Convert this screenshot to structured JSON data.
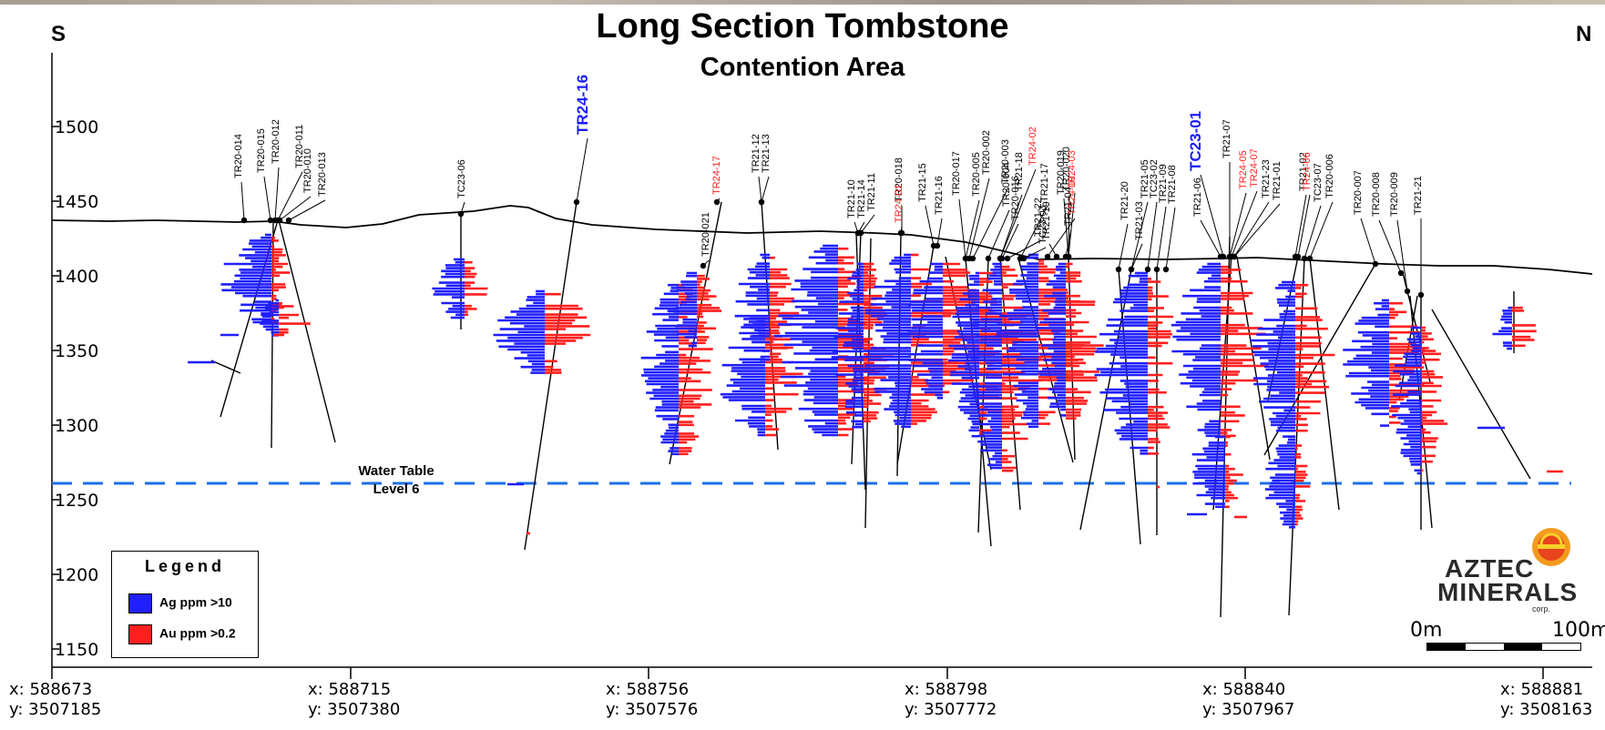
{
  "title": "Long Section Tombstone",
  "subtitle": "Contention Area",
  "direction_left": "S",
  "direction_right": "N",
  "y_axis_ticks": [
    "1500",
    "1450",
    "1400",
    "1350",
    "1300",
    "1250",
    "1200",
    "1150"
  ],
  "x_coordinates": [
    {
      "x": "x: 588673",
      "y": "y: 3507185"
    },
    {
      "x": "x: 588715",
      "y": "y: 3507380"
    },
    {
      "x": "x: 588756",
      "y": "y: 3507576"
    },
    {
      "x": "x: 588798",
      "y": "y: 3507772"
    },
    {
      "x": "x: 588840",
      "y": "y: 3507967"
    },
    {
      "x": "x: 588881",
      "y": "y: 3508163"
    }
  ],
  "water_table": {
    "line1": "Water Table",
    "line2": "Level 6"
  },
  "legend": {
    "title": "Legend",
    "items": [
      {
        "label": "Ag ppm >10",
        "color": "#1f1fff"
      },
      {
        "label": "Au ppm >0.2",
        "color": "#ff1f1f"
      }
    ]
  },
  "logo": {
    "line1": "AZTEC",
    "line2": "MINERALS",
    "line3": "corp."
  },
  "scale_bar": {
    "start": "0m",
    "end": "100m"
  },
  "colors": {
    "ag": "#1f1fff",
    "au": "#ff1f1f",
    "highlight_hole": "#1a1aff",
    "new_hole": "#ff1f1f",
    "water_table": "#1f6fe8"
  },
  "drill_holes": [
    {
      "name": "TR20-014",
      "color": "black"
    },
    {
      "name": "TR20-015",
      "color": "black"
    },
    {
      "name": "TR20-012",
      "color": "black"
    },
    {
      "name": "TR20-011",
      "color": "black"
    },
    {
      "name": "TR20-010",
      "color": "black"
    },
    {
      "name": "TR20-013",
      "color": "black"
    },
    {
      "name": "TC23-06",
      "color": "black"
    },
    {
      "name": "TR24-16",
      "color": "blue"
    },
    {
      "name": "TR20-021",
      "color": "black"
    },
    {
      "name": "TR24-17",
      "color": "red"
    },
    {
      "name": "TR21-12",
      "color": "black"
    },
    {
      "name": "TR21-13",
      "color": "black"
    },
    {
      "name": "TR21-10",
      "color": "black"
    },
    {
      "name": "TR21-14",
      "color": "black"
    },
    {
      "name": "TR21-11",
      "color": "black"
    },
    {
      "name": "TR20-018",
      "color": "black"
    },
    {
      "name": "TR24-01",
      "color": "red"
    },
    {
      "name": "TR21-15",
      "color": "black"
    },
    {
      "name": "TR21-16",
      "color": "black"
    },
    {
      "name": "TR20-017",
      "color": "black"
    },
    {
      "name": "TR20-005",
      "color": "black"
    },
    {
      "name": "TR20-002",
      "color": "black"
    },
    {
      "name": "TR20-003",
      "color": "black"
    },
    {
      "name": "TR20-004",
      "color": "black"
    },
    {
      "name": "TR20-016",
      "color": "black"
    },
    {
      "name": "TR21-18",
      "color": "black"
    },
    {
      "name": "TR24-02",
      "color": "red"
    },
    {
      "name": "TR21-22",
      "color": "black"
    },
    {
      "name": "TR21-17",
      "color": "black"
    },
    {
      "name": "TC23-03",
      "color": "black"
    },
    {
      "name": "TR20-019",
      "color": "black"
    },
    {
      "name": "TR20-020",
      "color": "black"
    },
    {
      "name": "TR24-03",
      "color": "red"
    },
    {
      "name": "TR24-10",
      "color": "red"
    },
    {
      "name": "TR21-19",
      "color": "black"
    },
    {
      "name": "TR21-04",
      "color": "black"
    },
    {
      "name": "TR21-20",
      "color": "black"
    },
    {
      "name": "TR21-03",
      "color": "black"
    },
    {
      "name": "TR21-05",
      "color": "black"
    },
    {
      "name": "TC23-02",
      "color": "black"
    },
    {
      "name": "TR21-09",
      "color": "black"
    },
    {
      "name": "TR21-08",
      "color": "black"
    },
    {
      "name": "TR21-06",
      "color": "black"
    },
    {
      "name": "TC23-01",
      "color": "blue"
    },
    {
      "name": "TR21-07",
      "color": "black"
    },
    {
      "name": "TR24-05",
      "color": "red"
    },
    {
      "name": "TR24-07",
      "color": "red"
    },
    {
      "name": "TR21-23",
      "color": "black"
    },
    {
      "name": "TR21-01",
      "color": "black"
    },
    {
      "name": "TR21-02",
      "color": "black"
    },
    {
      "name": "TR24-06",
      "color": "red"
    },
    {
      "name": "TC23-07",
      "color": "black"
    },
    {
      "name": "TR20-006",
      "color": "black"
    },
    {
      "name": "TR20-007",
      "color": "black"
    },
    {
      "name": "TR20-008",
      "color": "black"
    },
    {
      "name": "TR20-009",
      "color": "black"
    },
    {
      "name": "TR21-21",
      "color": "black"
    }
  ]
}
